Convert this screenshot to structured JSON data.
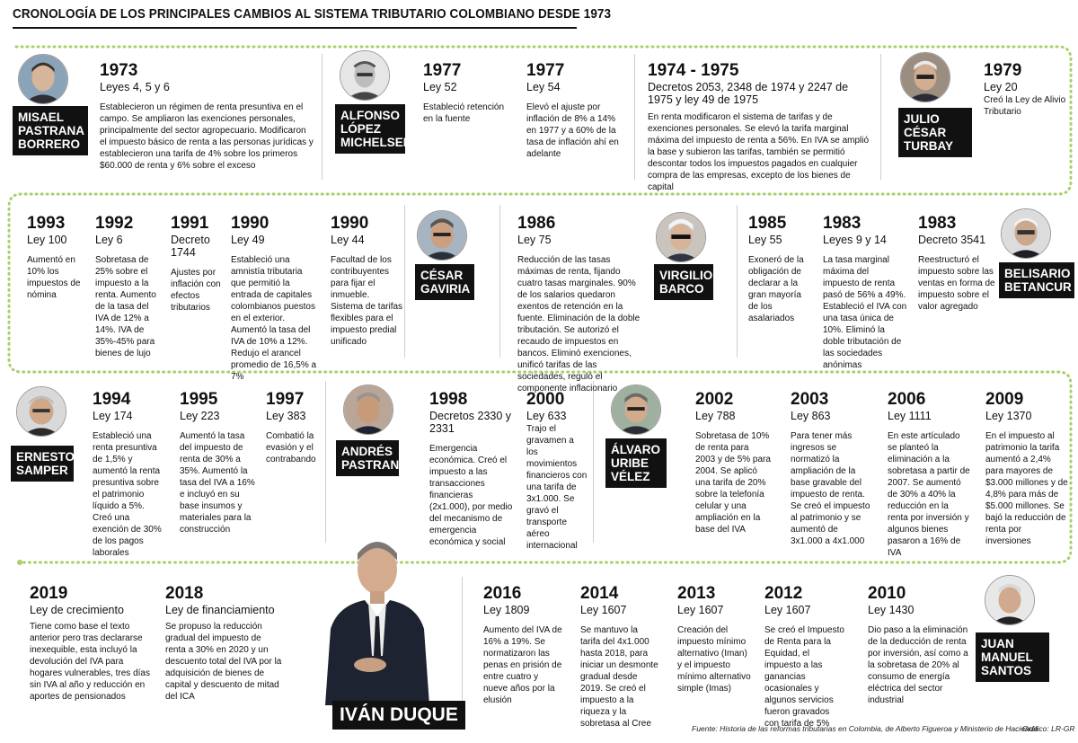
{
  "title": "CRONOLOGÍA DE LOS PRINCIPALES CAMBIOS AL SISTEMA TRIBUTARIO COLOMBIANO DESDE 1973",
  "colors": {
    "timeline": "#a9cf6a",
    "name_box": "#111111"
  },
  "people": [
    {
      "name": "MISAEL\nPASTRANA\nBORRERO",
      "icon": "portrait-photo"
    },
    {
      "name": "ALFONSO\nLÓPEZ\nMICHELSEN",
      "icon": "portrait-photo"
    },
    {
      "name": "JULIO\nCÉSAR\nTURBAY",
      "icon": "portrait-photo"
    },
    {
      "name": "BELISARIO\nBETANCUR",
      "icon": "portrait-photo"
    },
    {
      "name": "VIRGILIO\nBARCO",
      "icon": "portrait-photo"
    },
    {
      "name": "CÉSAR\nGAVIRIA",
      "icon": "portrait-photo"
    },
    {
      "name": "ERNESTO\nSAMPER",
      "icon": "portrait-photo"
    },
    {
      "name": "ANDRÉS\nPASTRANA",
      "icon": "portrait-photo"
    },
    {
      "name": "ÁLVARO\nURIBE\nVÉLEZ",
      "icon": "portrait-photo"
    },
    {
      "name": "JUAN\nMANUEL\nSANTOS",
      "icon": "portrait-photo"
    },
    {
      "name": "IVÁN DUQUE",
      "icon": "portrait-photo"
    }
  ],
  "entries": [
    {
      "year": "1973",
      "law": "Leyes 4, 5 y 6",
      "desc": "Establecieron un régimen de renta presuntiva en el campo. Se ampliaron las exenciones personales, principalmente del sector agropecuario. Modificaron el impuesto básico de renta a las personas jurídicas y establecieron una tarifa de 4% sobre los primeros $60.000 de renta y 6% sobre el exceso"
    },
    {
      "year": "1977",
      "law": "Ley 52",
      "desc": "Estableció retención en la fuente"
    },
    {
      "year": "1977",
      "law": "Ley 54",
      "desc": "Elevó el ajuste por inflación de 8% a 14% en 1977 y a 60% de la tasa de inflación ahí en adelante"
    },
    {
      "year": "1974 - 1975",
      "law": "Decretos 2053, 2348 de 1974 y 2247 de 1975 y ley 49 de 1975",
      "desc": "En renta modificaron el sistema de tarifas y de exenciones personales. Se elevó la tarifa marginal máxima del impuesto de renta a 56%. En IVA se amplió la base y subieron las tarifas, también se permitió descontar todos los impuestos pagados en cualquier compra de las empresas, excepto de los bienes de capital"
    },
    {
      "year": "1979",
      "law": "Ley 20",
      "desc": "Creó la Ley de Alivio Tributario"
    },
    {
      "year": "1993",
      "law": "Ley 100",
      "desc": "Aumentó en 10% los impuestos de nómina"
    },
    {
      "year": "1992",
      "law": "Ley 6",
      "desc": "Sobretasa de 25% sobre el impuesto a la renta. Aumento de la tasa del IVA de 12% a 14%. IVA de 35%-45% para bienes de lujo"
    },
    {
      "year": "1991",
      "law": "Decreto 1744",
      "desc": "Ajustes por inflación con efectos tributarios"
    },
    {
      "year": "1990",
      "law": "Ley 49",
      "desc": "Estableció una amnistía tributaria que permitió la entrada de capitales colombianos puestos en el exterior. Aumentó la tasa del IVA de 10% a 12%. Redujo el arancel promedio de 16,5% a 7%"
    },
    {
      "year": "1990",
      "law": "Ley 44",
      "desc": "Facultad de los contribuyentes para fijar el inmueble. Sistema de tarifas flexibles para el impuesto predial unificado"
    },
    {
      "year": "1986",
      "law": "Ley 75",
      "desc": "Reducción de las tasas máximas de renta, fijando cuatro tasas marginales. 90% de los salarios quedaron exentos de retención en la fuente. Eliminación de la doble tributación. Se autorizó el recaudo de impuestos en bancos. Eliminó exenciones, unificó tarifas de las sociedades, reguló el componente inflacionario"
    },
    {
      "year": "1985",
      "law": "Ley 55",
      "desc": "Exoneró de la obligación de declarar a la gran mayoría de los asalariados"
    },
    {
      "year": "1983",
      "law": "Leyes 9 y 14",
      "desc": "La tasa marginal máxima del impuesto de renta pasó de 56% a 49%. Estableció el IVA con una tasa única de 10%. Eliminó la doble tributación de las sociedades anónimas"
    },
    {
      "year": "1983",
      "law": "Decreto 3541",
      "desc": "Reestructuró el impuesto sobre las ventas en forma de impuesto sobre el valor agregado"
    },
    {
      "year": "1994",
      "law": "Ley 174",
      "desc": "Estableció una renta presuntiva de 1,5% y aumentó la renta presuntiva sobre el patrimonio líquido a 5%. Creó una exención de 30% de los pagos laborales"
    },
    {
      "year": "1995",
      "law": "Ley 223",
      "desc": "Aumentó la tasa del impuesto de renta de 30% a 35%. Aumentó la tasa del IVA a 16% e incluyó en su base insumos y materiales para la construcción"
    },
    {
      "year": "1997",
      "law": "Ley 383",
      "desc": "Combatió la evasión y el contrabando"
    },
    {
      "year": "1998",
      "law": "Decretos 2330 y 2331",
      "desc": "Emergencia económica. Creó el impuesto a las transacciones financieras (2x1.000), por medio del mecanismo de emergencia económica y social"
    },
    {
      "year": "2000",
      "law": "Ley 633",
      "desc": "Trajo el gravamen a los movimientos financieros con una tarifa de 3x1.000. Se gravó el transporte aéreo internacional"
    },
    {
      "year": "2002",
      "law": "Ley 788",
      "desc": "Sobretasa de 10% de renta para 2003 y de 5% para 2004. Se aplicó una tarifa de 20% sobre la telefonía celular y una ampliación en la base del IVA"
    },
    {
      "year": "2003",
      "law": "Ley 863",
      "desc": "Para tener más ingresos se normatizó la ampliación de la base gravable del impuesto de renta. Se creó el impuesto al patrimonio y se aumentó de 3x1.000 a 4x1.000"
    },
    {
      "year": "2006",
      "law": "Ley 1111",
      "desc": "En este artículado se planteó la eliminación a la sobretasa a partir de 2007. Se aumentó de 30% a 40% la reducción en la renta por inversión y algunos bienes pasaron a 16% de IVA"
    },
    {
      "year": "2009",
      "law": "Ley 1370",
      "desc": "En el impuesto al patrimonio la tarifa aumentó a 2,4% para mayores de $3.000 millones y de 4,8% para más de $5.000 millones. Se bajó la reducción de renta por inversiones"
    },
    {
      "year": "2019",
      "law": "Ley de crecimiento",
      "desc": "Tiene como base el texto anterior pero tras declararse inexequible, esta incluyó la devolución del IVA para hogares vulnerables, tres días sin IVA al año y reducción en aportes de pensionados"
    },
    {
      "year": "2018",
      "law": "Ley de financiamiento",
      "desc": "Se propuso la reducción gradual del impuesto de renta a 30% en 2020 y un descuento total del IVA por la adquisición de bienes de capital y descuento de mitad del ICA"
    },
    {
      "year": "2016",
      "law": "Ley 1809",
      "desc": "Aumento del IVA de 16% a 19%. Se normatizaron las penas en prisión de entre cuatro y nueve años por la elusión"
    },
    {
      "year": "2014",
      "law": "Ley 1607",
      "desc": "Se mantuvo la tarifa del 4x1.000 hasta 2018, para iniciar un desmonte gradual desde 2019. Se creó el impuesto a la riqueza y la sobretasa al Cree"
    },
    {
      "year": "2013",
      "law": "Ley 1607",
      "desc": "Creación del impuesto mínimo alternativo (Iman) y el impuesto mínimo alternativo simple (Imas)"
    },
    {
      "year": "2012",
      "law": "Ley 1607",
      "desc": "Se creó el Impuesto de Renta para la Equidad, el impuesto a las ganancias ocasionales y algunos servicios fueron gravados con tarifa de 5%"
    },
    {
      "year": "2010",
      "law": "Ley 1430",
      "desc": "Dio paso a la eliminación de la deducción de renta por inversión, así como a la sobretasa de 20% al consumo de energía eléctrica del sector industrial"
    }
  ],
  "footer": {
    "source": "Fuente: Historia de las reformas tributarias en Colombia, de Alberto Figueroa y Ministerio de Hacienda",
    "credit": "Gráfico: LR-GR"
  }
}
